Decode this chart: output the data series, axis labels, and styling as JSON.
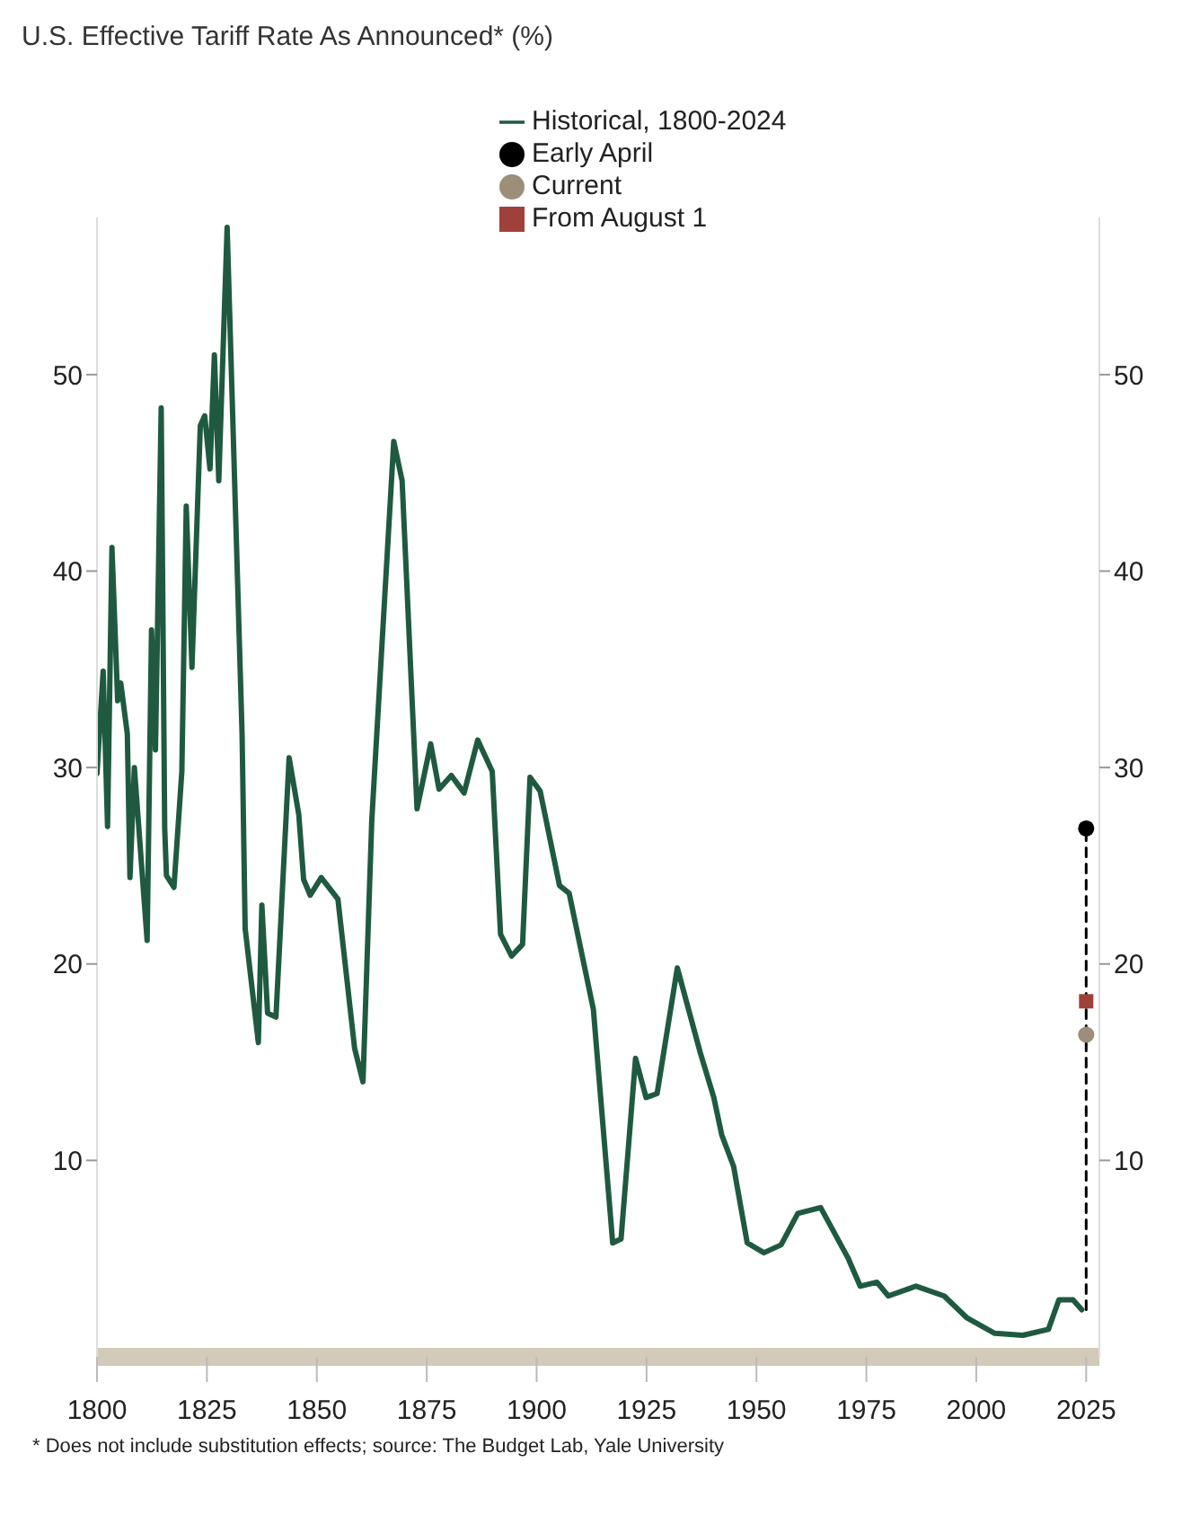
{
  "chart_data": {
    "type": "line",
    "title": "U.S. Effective Tariff Rate As Announced* (%)",
    "annotations": [
      "* Does not include substitution effects; source: The Budget Lab, Yale University"
    ],
    "xlim": [
      1800,
      2028
    ],
    "xticks": [
      1800,
      1825,
      1850,
      1875,
      1900,
      1925,
      1950,
      1975,
      2000,
      2025
    ],
    "ylim": [
      0,
      58
    ],
    "yticks": [
      10,
      20,
      30,
      40,
      50
    ],
    "y2lim": [
      0,
      58
    ],
    "y2ticks": [
      10,
      20,
      30,
      40,
      50
    ],
    "grid": false,
    "legend": "top",
    "marker": "none",
    "line_style": "solid",
    "series": [
      {
        "name": "Historical, 1800-2024",
        "color": "#1f5a40",
        "x": [
          1800,
          1801.4,
          1802.4,
          1803.4,
          1804.7,
          1805.4,
          1806.9,
          1807.5,
          1808.5,
          1811.4,
          1812.4,
          1813.3,
          1814.6,
          1815.4,
          1815.8,
          1817.5,
          1819.3,
          1820.3,
          1821.6,
          1823.5,
          1824.5,
          1825.7,
          1826.7,
          1827.7,
          1829.6,
          1833,
          1833.7,
          1836.7,
          1837.5,
          1838.8,
          1840.7,
          1843.7,
          1845.9,
          1847,
          1848.5,
          1851,
          1854.8,
          1858.6,
          1860.5,
          1862.5,
          1867.5,
          1869.4,
          1872.8,
          1875.9,
          1877.8,
          1880.6,
          1883.5,
          1886.6,
          1889.9,
          1891.8,
          1894.3,
          1896.8,
          1898.5,
          1900.8,
          1905.2,
          1907.4,
          1912.9,
          1917.3,
          1919.2,
          1922.5,
          1924.9,
          1927.4,
          1932,
          1937.2,
          1940.3,
          1942.1,
          1944.8,
          1947.9,
          1951.7,
          1955.6,
          1959.4,
          1964.6,
          1970.9,
          1973.6,
          1977.4,
          1980,
          1986.3,
          1992.7,
          1997.8,
          2004.2,
          2010.6,
          2016.4,
          2018.8,
          2022,
          2024
        ],
        "values": [
          29.7,
          34.9,
          27,
          41.2,
          33.4,
          34.3,
          31.7,
          24.4,
          30,
          21.2,
          37,
          30.9,
          48.3,
          26.9,
          24.5,
          23.9,
          29.8,
          43.3,
          35.1,
          47.4,
          47.9,
          45.2,
          51,
          44.6,
          57.5,
          31.7,
          21.8,
          16,
          23,
          17.5,
          17.3,
          30.5,
          27.6,
          24.3,
          23.5,
          24.4,
          23.3,
          15.7,
          14,
          27.3,
          46.6,
          44.6,
          27.9,
          31.2,
          28.9,
          29.6,
          28.7,
          31.4,
          29.8,
          21.5,
          20.4,
          21,
          29.5,
          28.8,
          24,
          23.6,
          17.7,
          5.8,
          6,
          15.2,
          13.2,
          13.4,
          19.8,
          15.5,
          13.2,
          11.3,
          9.7,
          5.8,
          5.3,
          5.7,
          7.3,
          7.6,
          5,
          3.6,
          3.8,
          3.1,
          3.6,
          3.1,
          2,
          1.2,
          1.1,
          1.4,
          2.9,
          2.9,
          2.4
        ]
      },
      {
        "type": "line",
        "line_style": "dashed",
        "color": "#000000",
        "x": [
          2025,
          2025
        ],
        "values": [
          2.4,
          26.9
        ]
      },
      {
        "name": "Early April",
        "type": "scatter",
        "marker": "circle",
        "color": "#000000",
        "x": [
          2025
        ],
        "values": [
          26.9
        ]
      },
      {
        "name": "Current",
        "type": "scatter",
        "marker": "circle",
        "color": "#9c8e78",
        "x": [
          2025
        ],
        "values": [
          16.4
        ]
      },
      {
        "name": "From August 1",
        "type": "scatter",
        "marker": "square",
        "color": "#a0403a",
        "x": [
          2025
        ],
        "values": [
          18.1
        ]
      }
    ]
  }
}
